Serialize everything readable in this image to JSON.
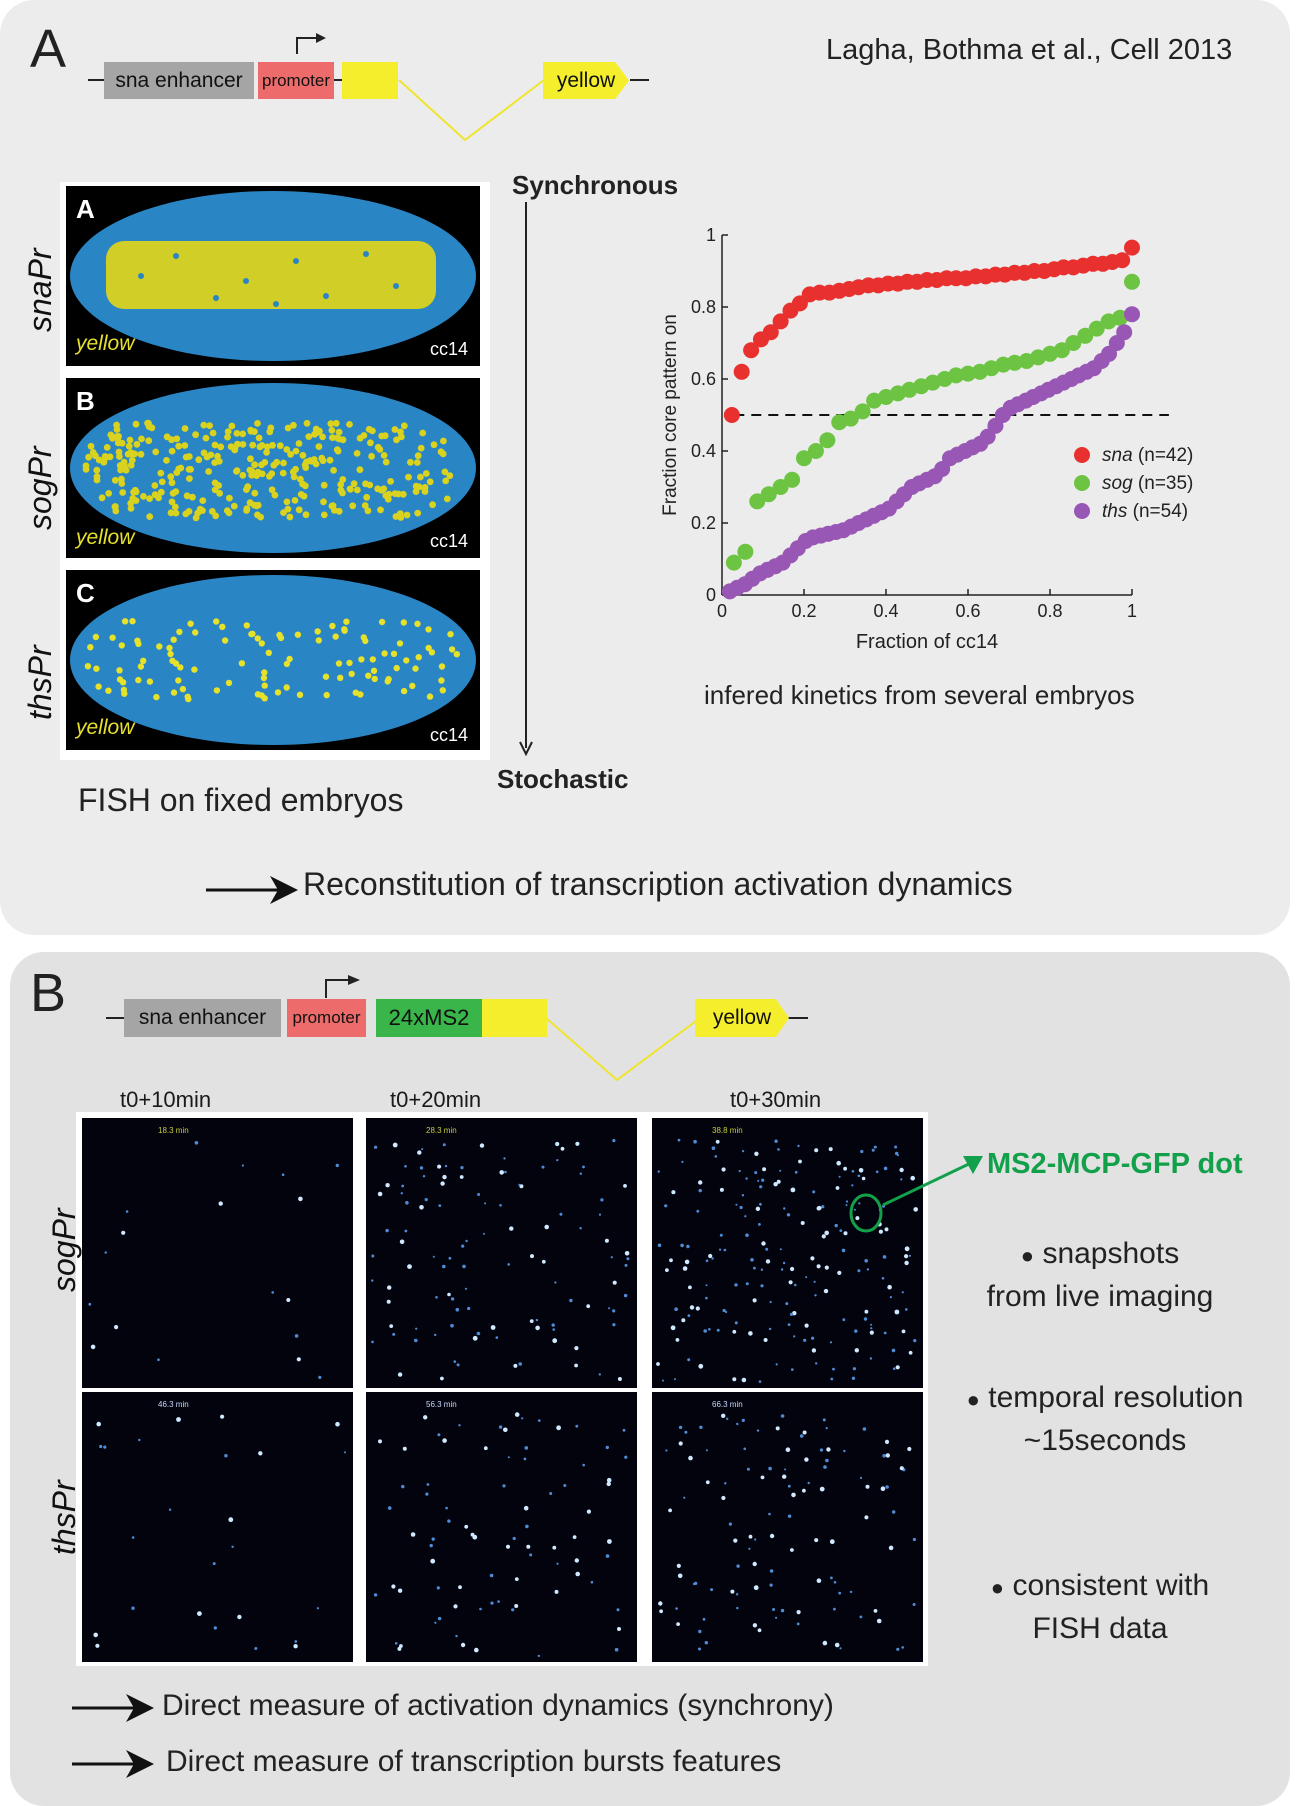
{
  "colors": {
    "yellow": "#f4ee2c",
    "enhancer": "#a5a5a5",
    "promoter": "#ee6b6b",
    "ms2": "#3ab54a",
    "blue": "#2a85c4",
    "red": "#e8312e",
    "green": "#6cc442",
    "purple": "#9857b5",
    "ms2_label": "#12a14a"
  },
  "panel_a": {
    "letter": "A",
    "citation": "Lagha, Bothma et al., Cell 2013",
    "construct": {
      "enhancer": "sna enhancer",
      "promoter": "promoter",
      "reporter": "yellow"
    },
    "embryos": [
      {
        "letter": "A",
        "row_label": "snaPr",
        "reporter": "yellow",
        "stage": "cc14"
      },
      {
        "letter": "B",
        "row_label": "sogPr",
        "reporter": "yellow",
        "stage": "cc14"
      },
      {
        "letter": "C",
        "row_label": "thsPr",
        "reporter": "yellow",
        "stage": "cc14"
      }
    ],
    "axis_top": "Synchronous",
    "axis_bottom": "Stochastic",
    "fish_caption": "FISH on fixed embryos",
    "chart_caption": "infered kinetics from several embryos",
    "conclusion": "Reconstitution of transcription activation dynamics"
  },
  "chart_data": {
    "type": "scatter",
    "xlabel": "Fraction of cc14",
    "ylabel": "Fraction core pattern on",
    "xlim": [
      0,
      1
    ],
    "ylim": [
      0,
      1
    ],
    "xticks": [
      "0",
      "0.2",
      "0.4",
      "0.6",
      "0.8",
      "1"
    ],
    "yticks": [
      "0",
      "0.2",
      "0.4",
      "0.6",
      "0.8",
      "1"
    ],
    "reference_line": 0.5,
    "legend_position": "right-middle",
    "series": [
      {
        "name": "sna",
        "count_label": "(n=42)",
        "color": "#e8312e",
        "x": [
          0.024,
          0.048,
          0.071,
          0.095,
          0.119,
          0.143,
          0.167,
          0.19,
          0.214,
          0.238,
          0.262,
          0.286,
          0.31,
          0.333,
          0.357,
          0.381,
          0.405,
          0.429,
          0.452,
          0.476,
          0.5,
          0.524,
          0.548,
          0.571,
          0.595,
          0.619,
          0.643,
          0.667,
          0.69,
          0.714,
          0.738,
          0.762,
          0.786,
          0.81,
          0.833,
          0.857,
          0.881,
          0.905,
          0.929,
          0.952,
          0.976,
          1.0
        ],
        "y": [
          0.5,
          0.62,
          0.68,
          0.71,
          0.73,
          0.76,
          0.79,
          0.81,
          0.835,
          0.84,
          0.84,
          0.845,
          0.85,
          0.855,
          0.86,
          0.86,
          0.865,
          0.865,
          0.87,
          0.87,
          0.875,
          0.875,
          0.88,
          0.88,
          0.88,
          0.885,
          0.885,
          0.89,
          0.89,
          0.895,
          0.895,
          0.9,
          0.9,
          0.905,
          0.91,
          0.91,
          0.915,
          0.92,
          0.92,
          0.925,
          0.93,
          0.965
        ]
      },
      {
        "name": "sog",
        "count_label": "(n=35)",
        "color": "#6cc442",
        "x": [
          0.029,
          0.057,
          0.086,
          0.114,
          0.143,
          0.171,
          0.2,
          0.229,
          0.257,
          0.286,
          0.314,
          0.343,
          0.371,
          0.4,
          0.429,
          0.457,
          0.486,
          0.514,
          0.543,
          0.571,
          0.6,
          0.629,
          0.657,
          0.686,
          0.714,
          0.743,
          0.771,
          0.8,
          0.829,
          0.857,
          0.886,
          0.914,
          0.943,
          0.971,
          1.0
        ],
        "y": [
          0.09,
          0.12,
          0.26,
          0.28,
          0.3,
          0.32,
          0.38,
          0.4,
          0.43,
          0.48,
          0.49,
          0.51,
          0.54,
          0.55,
          0.56,
          0.57,
          0.58,
          0.59,
          0.6,
          0.61,
          0.615,
          0.62,
          0.63,
          0.64,
          0.645,
          0.65,
          0.66,
          0.67,
          0.68,
          0.7,
          0.72,
          0.74,
          0.76,
          0.77,
          0.87
        ]
      },
      {
        "name": "ths",
        "count_label": "(n=54)",
        "color": "#9857b5",
        "x": [
          0.019,
          0.037,
          0.056,
          0.074,
          0.093,
          0.111,
          0.13,
          0.148,
          0.167,
          0.185,
          0.204,
          0.222,
          0.241,
          0.259,
          0.278,
          0.296,
          0.315,
          0.333,
          0.352,
          0.37,
          0.389,
          0.407,
          0.426,
          0.444,
          0.463,
          0.481,
          0.5,
          0.519,
          0.537,
          0.556,
          0.574,
          0.593,
          0.611,
          0.63,
          0.648,
          0.667,
          0.685,
          0.704,
          0.722,
          0.741,
          0.759,
          0.778,
          0.796,
          0.815,
          0.833,
          0.852,
          0.87,
          0.889,
          0.907,
          0.926,
          0.944,
          0.963,
          0.981,
          1.0
        ],
        "y": [
          0.01,
          0.02,
          0.03,
          0.045,
          0.06,
          0.07,
          0.08,
          0.09,
          0.11,
          0.13,
          0.15,
          0.16,
          0.165,
          0.17,
          0.175,
          0.18,
          0.19,
          0.2,
          0.21,
          0.22,
          0.23,
          0.24,
          0.26,
          0.28,
          0.3,
          0.31,
          0.32,
          0.33,
          0.35,
          0.38,
          0.39,
          0.4,
          0.41,
          0.42,
          0.44,
          0.47,
          0.5,
          0.52,
          0.53,
          0.54,
          0.55,
          0.56,
          0.57,
          0.58,
          0.59,
          0.6,
          0.61,
          0.62,
          0.63,
          0.65,
          0.67,
          0.7,
          0.73,
          0.78
        ]
      }
    ]
  },
  "panel_b": {
    "letter": "B",
    "construct": {
      "enhancer": "sna enhancer",
      "promoter": "promoter",
      "ms2": "24xMS2",
      "reporter": "yellow"
    },
    "timepoints": [
      "t0+10min",
      "t0+20min",
      "t0+30min"
    ],
    "row_labels": [
      "sogPr",
      "thsPr"
    ],
    "stamps": [
      [
        "18.3 min",
        "28.3 min",
        "38.8 min"
      ],
      [
        "46.3 min",
        "56.3 min",
        "66.3 min"
      ]
    ],
    "dot_label": "MS2-MCP-GFP dot",
    "bullets": [
      {
        "line1": "snapshots",
        "line2": "from live imaging"
      },
      {
        "line1": "temporal resolution",
        "line2": "~15seconds"
      },
      {
        "line1": "consistent with",
        "line2": "FISH data"
      }
    ],
    "conclusions": [
      "Direct measure of activation dynamics (synchrony)",
      "Direct measure of transcription bursts features"
    ]
  }
}
